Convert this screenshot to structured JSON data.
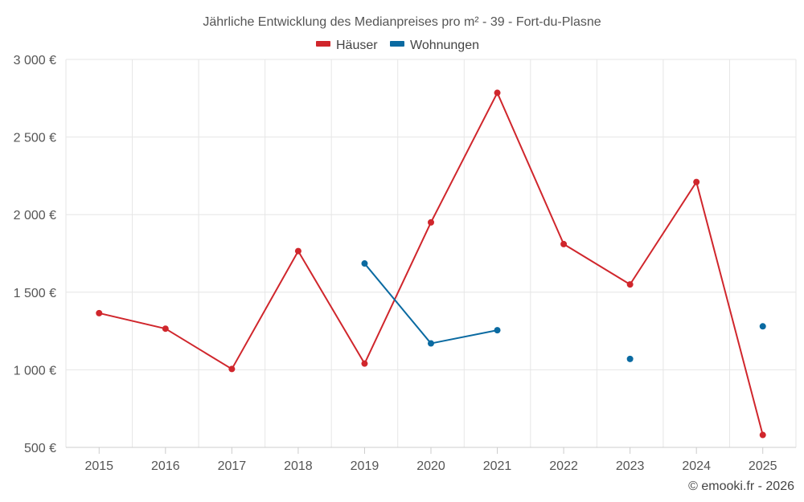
{
  "chart_data": {
    "type": "line",
    "title": "Jährliche Entwicklung des Medianpreises pro m² - 39 - Fort-du-Plasne",
    "categories": [
      "2015",
      "2016",
      "2017",
      "2018",
      "2019",
      "2020",
      "2021",
      "2022",
      "2023",
      "2024",
      "2025"
    ],
    "y_ticks": [
      "500 €",
      "1 000 €",
      "1 500 €",
      "2 000 €",
      "2 500 €",
      "3 000 €"
    ],
    "ylim": [
      500,
      3000
    ],
    "y_tick_values": [
      500,
      1000,
      1500,
      2000,
      2500,
      3000
    ],
    "grid": true,
    "legend_position": "top-center",
    "series": [
      {
        "name": "Häuser",
        "color": "#d0262c",
        "values": [
          1365,
          1265,
          1005,
          1765,
          1040,
          1950,
          2785,
          1810,
          1550,
          2210,
          580
        ]
      },
      {
        "name": "Wohnungen",
        "color": "#0a6aa1",
        "values": [
          null,
          null,
          null,
          null,
          1685,
          1170,
          1255,
          null,
          1070,
          null,
          1280
        ]
      }
    ]
  },
  "credit": "© emooki.fr - 2026"
}
